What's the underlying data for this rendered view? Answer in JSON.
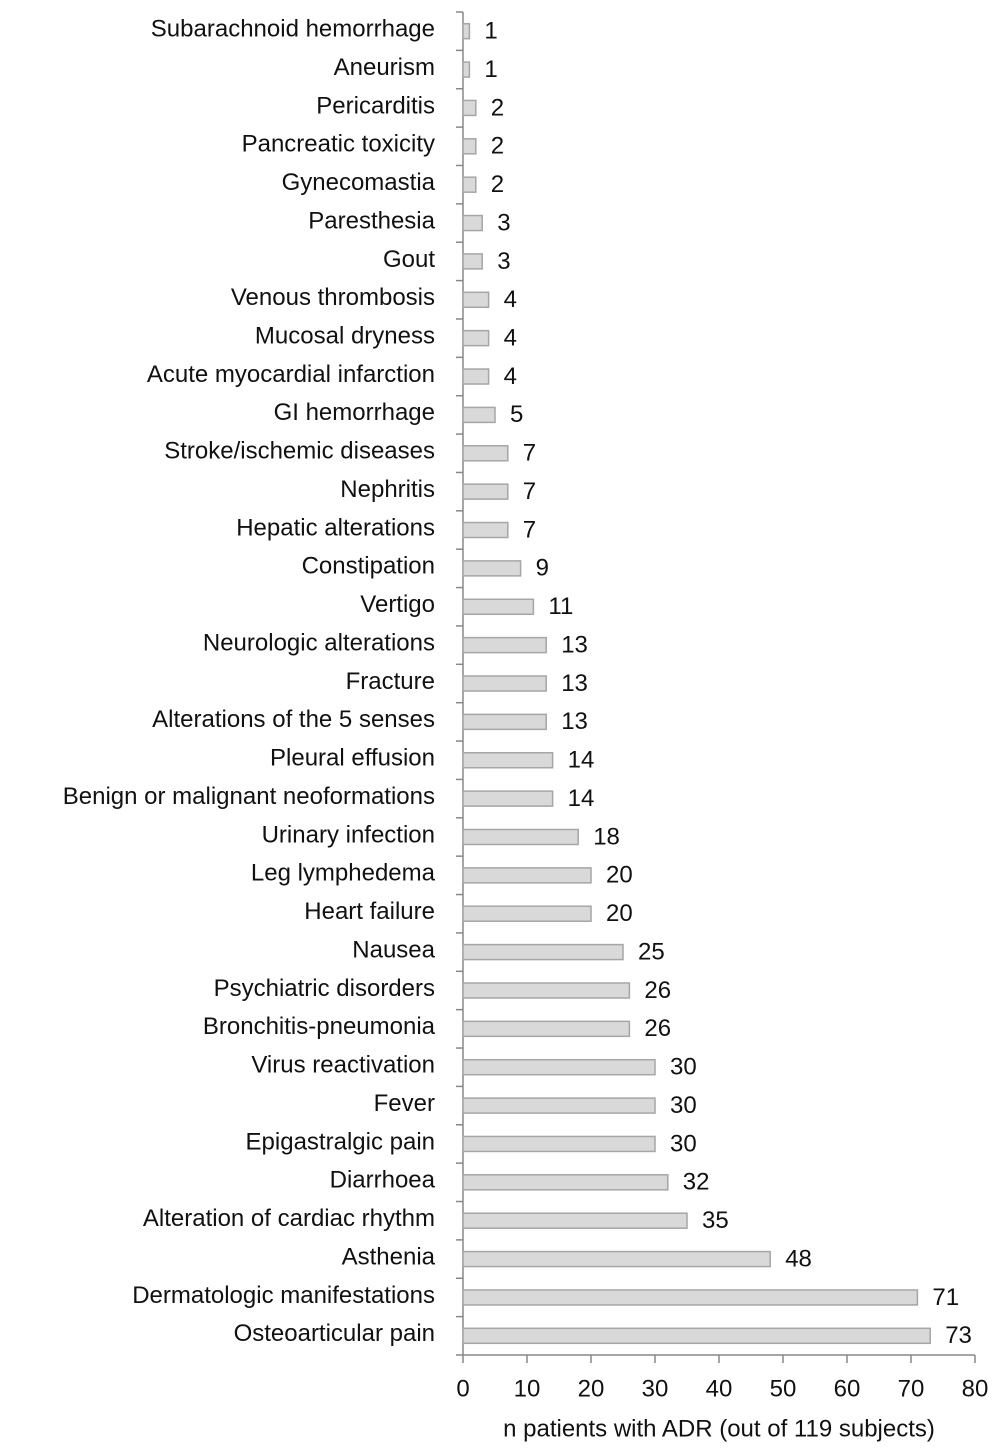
{
  "chart_data": {
    "type": "bar",
    "orientation": "horizontal",
    "x_label": "n patients with ADR (out of 119 subjects)",
    "categories": [
      "Subarachnoid hemorrhage",
      "Aneurism",
      "Pericarditis",
      "Pancreatic toxicity",
      "Gynecomastia",
      "Paresthesia",
      "Gout",
      "Venous thrombosis",
      "Mucosal dryness",
      "Acute myocardial infarction",
      "GI hemorrhage",
      "Stroke/ischemic diseases",
      "Nephritis",
      "Hepatic alterations",
      "Constipation",
      "Vertigo",
      "Neurologic alterations",
      "Fracture",
      "Alterations of the 5 senses",
      "Pleural effusion",
      "Benign or malignant neoformations",
      "Urinary infection",
      "Leg lymphedema",
      "Heart failure",
      "Nausea",
      "Psychiatric disorders",
      "Bronchitis-pneumonia",
      "Virus reactivation",
      "Fever",
      "Epigastralgic pain",
      "Diarrhoea",
      "Alteration of cardiac rhythm",
      "Asthenia",
      "Dermatologic manifestations",
      "Osteoarticular pain"
    ],
    "values": [
      1,
      1,
      2,
      2,
      2,
      3,
      3,
      4,
      4,
      4,
      5,
      7,
      7,
      7,
      9,
      11,
      13,
      13,
      13,
      14,
      14,
      18,
      20,
      20,
      25,
      26,
      26,
      30,
      30,
      30,
      32,
      35,
      48,
      71,
      73
    ],
    "color": "#d9d9d9",
    "edge_color": "#a6a6a6",
    "xlim": [
      0,
      80
    ],
    "xticks": [
      0,
      10,
      20,
      30,
      40,
      50,
      60,
      70,
      80
    ],
    "grid": false
  }
}
